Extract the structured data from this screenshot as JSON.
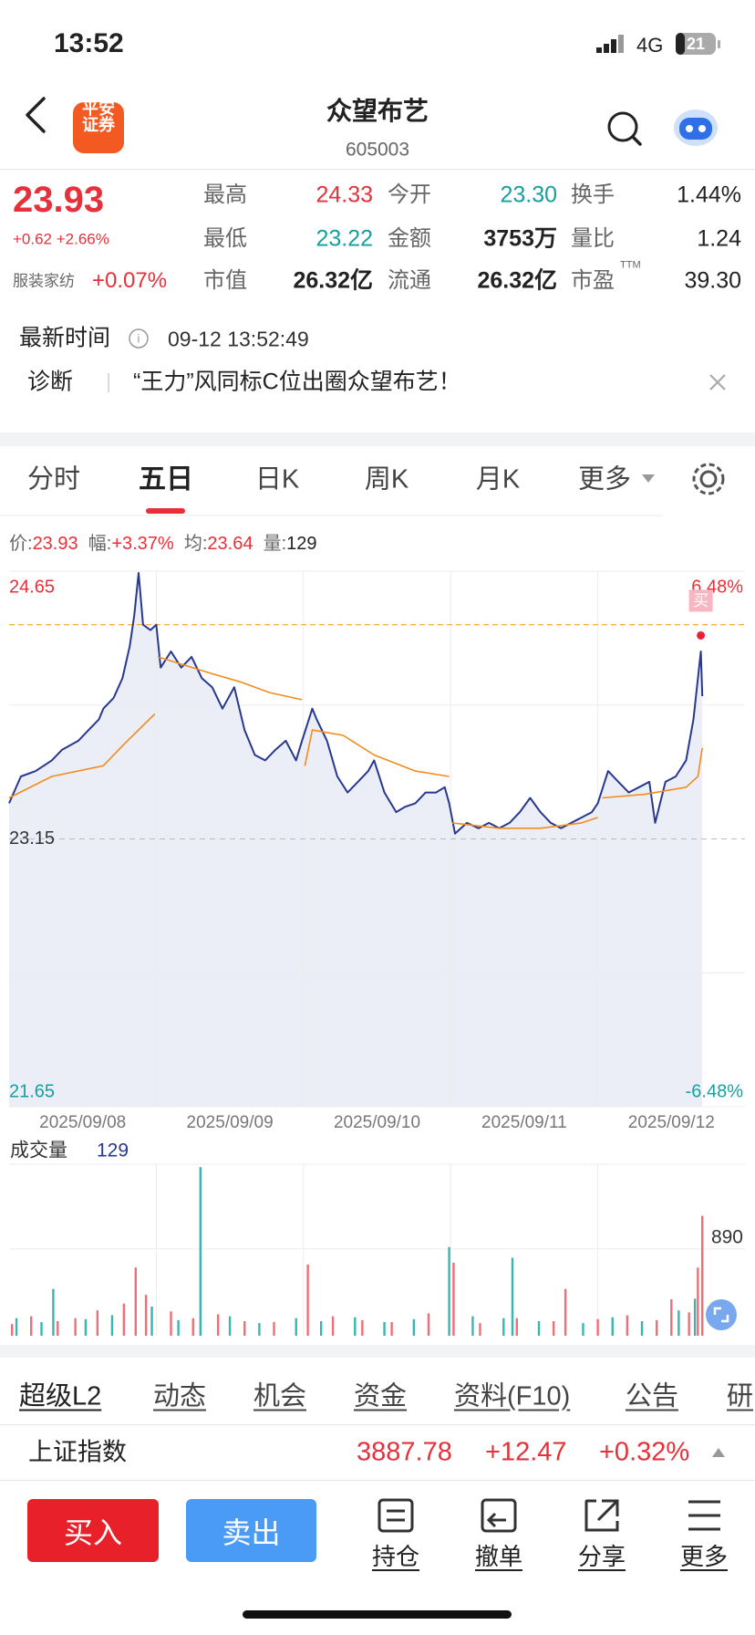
{
  "status": {
    "time": "13:52",
    "network": "4G",
    "battery": "21"
  },
  "header": {
    "logo": [
      "平安",
      "证券"
    ],
    "title": "众望布艺",
    "code": "605003"
  },
  "quote": {
    "price": "23.93",
    "change": "+0.62",
    "change_pct": "+2.66%",
    "sector": "服装家纺",
    "sector_pct": "+0.07%",
    "ttm": "TTM",
    "fields": [
      [
        "最高",
        "24.33"
      ],
      [
        "今开",
        "23.30"
      ],
      [
        "换手",
        "1.44%"
      ],
      [
        "最低",
        "23.22"
      ],
      [
        "金额",
        "3753万"
      ],
      [
        "量比",
        "1.24"
      ],
      [
        "市值",
        "26.32亿"
      ],
      [
        "流通",
        "26.32亿"
      ],
      [
        "市盈",
        "39.30"
      ]
    ]
  },
  "update": {
    "label": "最新时间",
    "time": "09-12 13:52:49"
  },
  "diagnosis": {
    "tag": "诊断",
    "text": "“王力”风同标C位出圈众望布艺！"
  },
  "tabs": [
    "分时",
    "五日",
    "日K",
    "周K",
    "月K",
    "更多"
  ],
  "info": {
    "price_label": "价:",
    "price": "23.93",
    "amp_label": "幅:",
    "amp": "+3.37%",
    "avg_label": "均:",
    "avg": "23.64",
    "vol_label": "量:",
    "vol": "129"
  },
  "chart_data": [
    {
      "type": "line",
      "categories": [
        "2025/09/08",
        "2025/09/09",
        "2025/09/10",
        "2025/09/11",
        "2025/09/12"
      ],
      "xlim": [
        0,
        5
      ],
      "ylim": [
        21.65,
        24.65
      ],
      "yticks": [
        24.65,
        23.15,
        21.65
      ],
      "y2lim": [
        -6.48,
        6.48
      ],
      "y2ticks": [
        {
          "value": 6.48,
          "label": "6.48%"
        },
        {
          "value": -6.48,
          "label": "-6.48%"
        }
      ],
      "grid_y": [
        23.9,
        22.4
      ],
      "grid_x": [
        1,
        2,
        3,
        4
      ],
      "base": 23.15,
      "up_color": "#e8303a",
      "down_color": "#169f9f",
      "series": [
        {
          "color": "#27388e",
          "fill": "#eceef7",
          "x": [
            0,
            0.08,
            0.18,
            0.29,
            0.36,
            0.47,
            0.54,
            0.61,
            0.64,
            0.71,
            0.77,
            0.82,
            0.85,
            0.88,
            0.91,
            0.96,
            1.0,
            1.03,
            1.1,
            1.17,
            1.24,
            1.31,
            1.38,
            1.45,
            1.53,
            1.6,
            1.67,
            1.74,
            1.81,
            1.88,
            1.95,
            1.99,
            2.06,
            2.09,
            2.16,
            2.23,
            2.3,
            2.37,
            2.44,
            2.48,
            2.55,
            2.63,
            2.69,
            2.76,
            2.83,
            2.9,
            2.96,
            2.99,
            3.03,
            3.11,
            3.19,
            3.26,
            3.33,
            3.4,
            3.47,
            3.54,
            3.61,
            3.68,
            3.75,
            3.82,
            3.89,
            3.96,
            4.0,
            4.07,
            4.14,
            4.21,
            4.28,
            4.35,
            4.39,
            4.46,
            4.53,
            4.6,
            4.65,
            4.7,
            4.71
          ],
          "values": [
            23.35,
            23.5,
            23.53,
            23.59,
            23.65,
            23.7,
            23.76,
            23.82,
            23.88,
            23.94,
            24.05,
            24.23,
            24.4,
            24.64,
            24.35,
            24.32,
            24.35,
            24.11,
            24.2,
            24.11,
            24.17,
            24.05,
            24.0,
            23.88,
            24.0,
            23.76,
            23.62,
            23.59,
            23.65,
            23.7,
            23.59,
            23.7,
            23.88,
            23.82,
            23.7,
            23.5,
            23.41,
            23.47,
            23.53,
            23.59,
            23.41,
            23.3,
            23.33,
            23.35,
            23.41,
            23.41,
            23.44,
            23.35,
            23.18,
            23.24,
            23.21,
            23.24,
            23.21,
            23.24,
            23.3,
            23.38,
            23.3,
            23.24,
            23.21,
            23.24,
            23.27,
            23.3,
            23.35,
            23.53,
            23.47,
            23.41,
            23.44,
            23.47,
            23.24,
            23.47,
            23.5,
            23.59,
            23.82,
            24.2,
            23.95
          ]
        },
        {
          "color": "#f28c1e",
          "x": [
            0,
            0.29,
            0.64,
            0.78,
            0.99,
            1.0,
            1.01,
            1.36,
            1.57,
            1.77,
            1.99,
            2.0,
            2.01,
            2.06,
            2.27,
            2.48,
            2.76,
            2.99,
            3.0,
            3.01,
            3.33,
            3.61,
            3.89,
            4.0,
            4.0,
            4.03,
            4.32,
            4.6,
            4.68,
            4.71
          ],
          "values": [
            23.38,
            23.5,
            23.56,
            23.68,
            23.85,
            null,
            24.17,
            24.08,
            24.03,
            23.97,
            23.93,
            null,
            23.56,
            23.76,
            23.73,
            23.62,
            23.53,
            23.5,
            null,
            23.24,
            23.21,
            23.21,
            23.24,
            23.27,
            null,
            23.38,
            23.4,
            23.44,
            23.5,
            23.66
          ]
        }
      ],
      "ref_line": {
        "value": 24.35,
        "color": "#f5a623"
      },
      "signal": {
        "label": "买",
        "x": 4.7,
        "y": 24.29,
        "color": "#e8203a"
      }
    },
    {
      "type": "bar",
      "title": "成交量",
      "value": "129",
      "xlim": [
        0,
        5
      ],
      "ylim": [
        0,
        1760
      ],
      "yticks": [
        890
      ],
      "grid_x": [
        1,
        2,
        3,
        4
      ],
      "series": [
        {
          "color": "#ef6f78",
          "x": [
            0.02,
            0.15,
            0.33,
            0.45,
            0.6,
            0.78,
            0.86,
            0.93,
            1.1,
            1.25,
            1.42,
            1.6,
            1.8,
            2.03,
            2.2,
            2.4,
            2.6,
            2.85,
            3.02,
            3.2,
            3.45,
            3.7,
            3.78,
            4.0,
            4.2,
            4.4,
            4.5,
            4.62,
            4.68,
            4.71
          ],
          "values": [
            120,
            200,
            150,
            180,
            260,
            330,
            700,
            420,
            250,
            180,
            220,
            150,
            140,
            730,
            200,
            160,
            140,
            230,
            750,
            130,
            180,
            150,
            480,
            170,
            210,
            160,
            375,
            240,
            700,
            1230
          ]
        },
        {
          "color": "#38b6b1",
          "x": [
            0.05,
            0.22,
            0.3,
            0.52,
            0.7,
            0.97,
            1.15,
            1.3,
            1.5,
            1.7,
            1.95,
            2.12,
            2.35,
            2.55,
            2.75,
            2.99,
            3.15,
            3.36,
            3.42,
            3.6,
            3.9,
            4.1,
            4.3,
            4.55,
            4.66
          ],
          "values": [
            180,
            140,
            480,
            170,
            210,
            300,
            160,
            1730,
            200,
            130,
            180,
            150,
            190,
            140,
            170,
            910,
            200,
            180,
            800,
            150,
            130,
            190,
            150,
            260,
            380
          ]
        }
      ]
    }
  ],
  "subtabs": [
    "超级L2",
    "动态",
    "机会",
    "资金",
    "资料(F10)",
    "公告",
    "研"
  ],
  "index": {
    "name": "上证指数",
    "value": "3887.78",
    "change": "+12.47",
    "pct": "+0.32%"
  },
  "actions": {
    "buy": "买入",
    "sell": "卖出",
    "items": [
      "持仓",
      "撤单",
      "分享",
      "更多"
    ]
  }
}
